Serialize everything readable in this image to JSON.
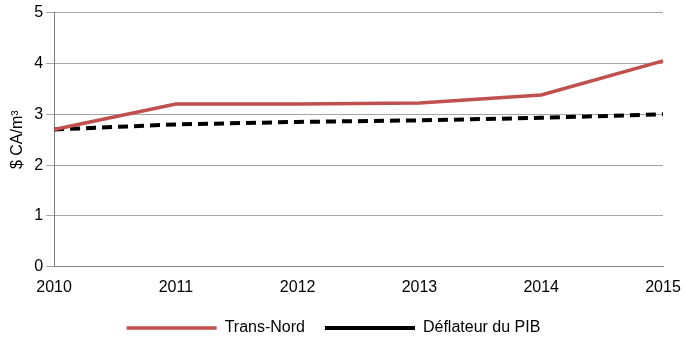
{
  "chart_data": {
    "type": "line",
    "y_label": "$ CA/m³",
    "categories": [
      "2010",
      "2011",
      "2012",
      "2013",
      "2014",
      "2015"
    ],
    "series": [
      {
        "name": "Trans-Nord",
        "color": "#c0504d",
        "line_style": "solid",
        "values": [
          2.7,
          3.2,
          3.2,
          3.22,
          3.38,
          4.05
        ]
      },
      {
        "name": "Déflateur du PIB",
        "color": "#000000",
        "line_style": "dashed",
        "values": [
          2.7,
          2.8,
          2.85,
          2.88,
          2.93,
          3.0
        ]
      }
    ],
    "ylim": [
      0,
      5
    ],
    "yticks": [
      0,
      1,
      2,
      3,
      4,
      5
    ],
    "grid": true,
    "legend": "bottom"
  }
}
